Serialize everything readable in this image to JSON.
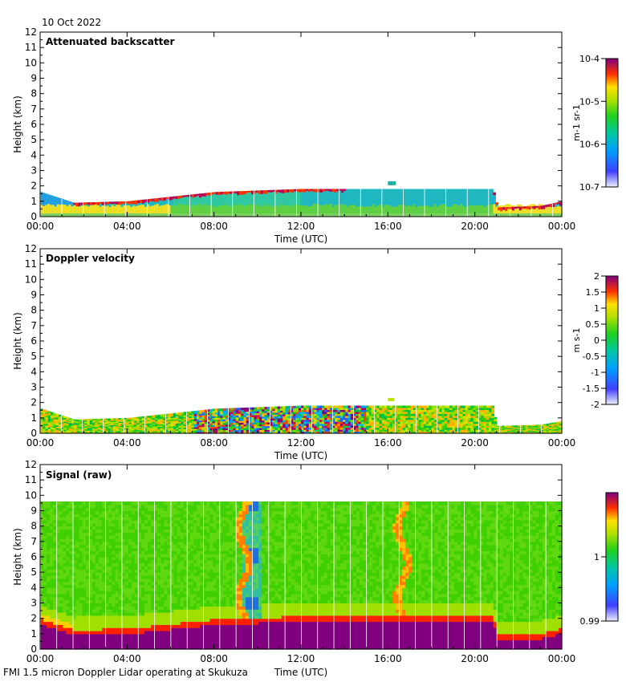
{
  "date_label": "10 Oct 2022",
  "footer": "FMI 1.5 micron Doppler Lidar operating at Skukuza",
  "chart_data": [
    {
      "type": "heatmap",
      "title": "Attenuated backscatter",
      "xlabel": "Time (UTC)",
      "ylabel": "Height (km)",
      "xticks": [
        "00:00",
        "04:00",
        "08:00",
        "12:00",
        "16:00",
        "20:00",
        "00:00"
      ],
      "yticks": [
        "0",
        "1",
        "2",
        "3",
        "4",
        "5",
        "6",
        "7",
        "8",
        "9",
        "10",
        "11",
        "12"
      ],
      "xlim": [
        0,
        24
      ],
      "ylim": [
        0,
        12
      ],
      "colorbar": {
        "scale": "log",
        "ticks": [
          "10-7",
          "10-6",
          "10-5",
          "10-4"
        ],
        "label": "m-1 sr-1"
      },
      "layer_top_km": [
        {
          "t": 0,
          "h": 1.6
        },
        {
          "t": 1.5,
          "h": 0.9
        },
        {
          "t": 4,
          "h": 1.0
        },
        {
          "t": 6,
          "h": 1.3
        },
        {
          "t": 8,
          "h": 1.6
        },
        {
          "t": 10,
          "h": 1.7
        },
        {
          "t": 12,
          "h": 1.8
        },
        {
          "t": 16,
          "h": 1.8
        },
        {
          "t": 20.8,
          "h": 1.8
        },
        {
          "t": 21,
          "h": 0.6
        },
        {
          "t": 23,
          "h": 0.7
        },
        {
          "t": 24,
          "h": 1.0
        }
      ]
    },
    {
      "type": "heatmap",
      "title": "Doppler velocity",
      "xlabel": "Time (UTC)",
      "ylabel": "Height (km)",
      "xticks": [
        "00:00",
        "04:00",
        "08:00",
        "12:00",
        "16:00",
        "20:00",
        "00:00"
      ],
      "yticks": [
        "0",
        "1",
        "2",
        "3",
        "4",
        "5",
        "6",
        "7",
        "8",
        "9",
        "10",
        "11",
        "12"
      ],
      "xlim": [
        0,
        24
      ],
      "ylim": [
        0,
        12
      ],
      "colorbar": {
        "scale": "linear",
        "ticks": [
          "2",
          "1.5",
          "1",
          "0.5",
          "0",
          "-0.5",
          "-1",
          "-1.5",
          "-2"
        ],
        "label": "m s-1",
        "range": [
          -2,
          2
        ]
      }
    },
    {
      "type": "heatmap",
      "title": "Signal (raw)",
      "xlabel": "Time (UTC)",
      "ylabel": "Height (km)",
      "xticks": [
        "00:00",
        "04:00",
        "08:00",
        "12:00",
        "16:00",
        "20:00",
        "00:00"
      ],
      "yticks": [
        "0",
        "1",
        "2",
        "3",
        "4",
        "5",
        "6",
        "7",
        "8",
        "9",
        "10",
        "11",
        "12"
      ],
      "xlim": [
        0,
        24
      ],
      "ylim": [
        0,
        12
      ],
      "data_top_km": 9.6,
      "colorbar": {
        "scale": "linear",
        "ticks": [
          "1",
          "0.99"
        ],
        "range": [
          0.99,
          1.01
        ]
      }
    }
  ]
}
